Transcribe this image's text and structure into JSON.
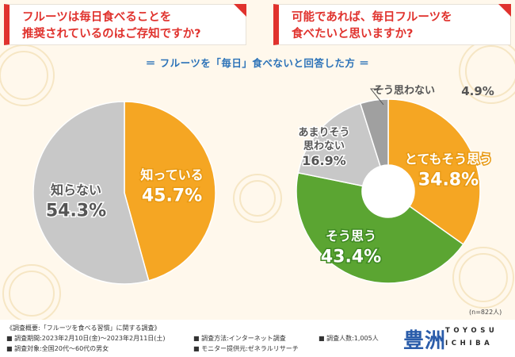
{
  "colors": {
    "accent_red": "#e0322d",
    "blue": "#2b72b8",
    "orange": "#f5a623",
    "green": "#5ba532",
    "gray_light": "#c8c8c8",
    "gray_dark": "#a0a0a0",
    "background": "#fff8ec"
  },
  "question1": {
    "line1": "フルーツは毎日食べることを",
    "line2": "推奨されているのはご存知ですか?"
  },
  "question2": {
    "line1": "可能であれば、毎日フルーツを",
    "line2": "食べたいと思いますか?"
  },
  "subtitle": "＝ フルーツを「毎日」食べないと回答した方 ＝",
  "chart_data": [
    {
      "type": "pie",
      "title": "フルーツは毎日食べることを推奨されているのはご存知ですか?",
      "categories": [
        "知っている",
        "知らない"
      ],
      "values": [
        45.7,
        54.3
      ],
      "unit": "%",
      "value_labels": [
        "45.7%",
        "54.3%"
      ],
      "colors": [
        "#f5a623",
        "#c8c8c8"
      ]
    },
    {
      "type": "pie",
      "donut": true,
      "title": "可能であれば、毎日フルーツを食べたいと思いますか?",
      "categories": [
        "とてもそう思う",
        "そう思う",
        "あまりそう思わない",
        "そう思わない"
      ],
      "category_lines": [
        [
          "とてもそう思う"
        ],
        [
          "そう思う"
        ],
        [
          "あまりそう",
          "思わない"
        ],
        [
          "そう思わない"
        ]
      ],
      "values": [
        34.8,
        43.4,
        16.9,
        4.9
      ],
      "unit": "%",
      "value_labels": [
        "34.8%",
        "43.4%",
        "16.9%",
        "4.9%"
      ],
      "colors": [
        "#f5a623",
        "#5ba532",
        "#c8c8c8",
        "#a0a0a0"
      ]
    }
  ],
  "sample_note": "(n=822人)",
  "footer": {
    "overview": "《調査概要:「フルーツを食べる習慣」に関する調査》",
    "period": "■ 調査期間:2023年2月10日(金)～2023年2月11日(土)",
    "target": "■ 調査対象:全国20代～60代の男女",
    "method": "■ 調査方法:インターネット調査",
    "provider": "■ モニター提供元:ゼネラルリサーチ",
    "respondents": "■ 調査人数:1,005人"
  },
  "logo": {
    "kanji": "豊洲",
    "line1": "TOYOSU",
    "line2": "ICHIBA"
  }
}
